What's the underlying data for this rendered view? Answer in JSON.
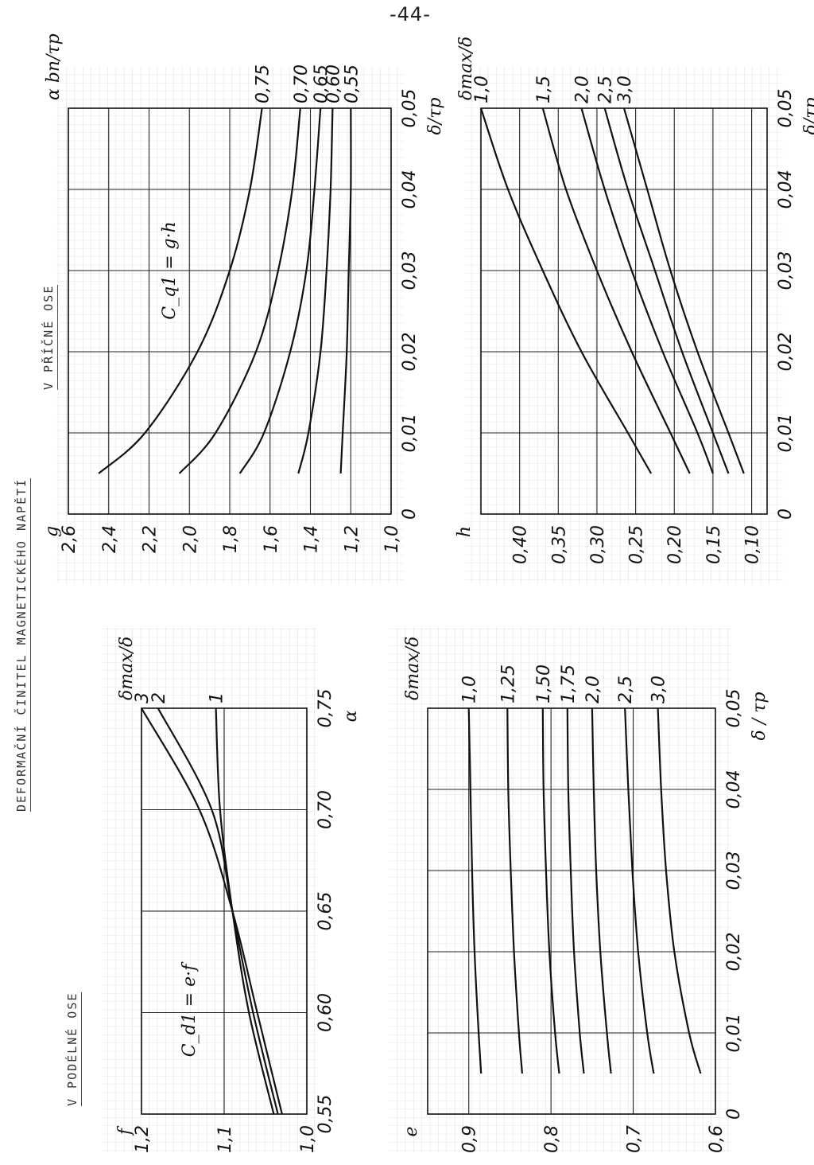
{
  "page_number": "-44-",
  "page_title": "DEFORMAČNÍ ČINITEL MAGNETICKÉHO NAPĚTÍ",
  "section_left": "V PODÉLNÉ OSE",
  "section_right": "V PŘÍČNÉ OSE",
  "chart_data": [
    {
      "id": "f-vs-alpha",
      "type": "line",
      "title": "",
      "annotation": "C_d1 = e·f",
      "xlabel": "α",
      "ylabel": "f",
      "series_label": "δmax/δ",
      "xlim": [
        0.55,
        0.75
      ],
      "ylim": [
        1.0,
        1.2
      ],
      "x_ticks": [
        "0,55",
        "0,60",
        "0,65",
        "0,70",
        "0,75"
      ],
      "y_ticks": [
        "1,0",
        "1,1",
        "1,2"
      ],
      "series": [
        {
          "name": "1",
          "x": [
            0.55,
            0.6,
            0.65,
            0.7,
            0.75
          ],
          "y": [
            1.04,
            1.07,
            1.09,
            1.105,
            1.11
          ]
        },
        {
          "name": "2",
          "x": [
            0.55,
            0.6,
            0.65,
            0.7,
            0.75
          ],
          "y": [
            1.035,
            1.065,
            1.09,
            1.115,
            1.18
          ]
        },
        {
          "name": "3",
          "x": [
            0.55,
            0.6,
            0.65,
            0.7,
            0.75
          ],
          "y": [
            1.03,
            1.06,
            1.09,
            1.13,
            1.2
          ]
        }
      ]
    },
    {
      "id": "e-vs-delta",
      "type": "line",
      "title": "",
      "xlabel": "δ / τp",
      "ylabel": "e",
      "series_label": "δmax/δ",
      "xlim": [
        0,
        0.05
      ],
      "ylim": [
        0.6,
        0.95
      ],
      "x_ticks": [
        "0",
        "0,01",
        "0,02",
        "0,03",
        "0,04",
        "0,05"
      ],
      "y_ticks": [
        "0,6",
        "0,7",
        "0,8",
        "0,9"
      ],
      "series": [
        {
          "name": "1,0",
          "x": [
            0.005,
            0.01,
            0.02,
            0.03,
            0.04,
            0.05
          ],
          "y": [
            0.885,
            0.888,
            0.893,
            0.896,
            0.898,
            0.9
          ]
        },
        {
          "name": "1,25",
          "x": [
            0.005,
            0.01,
            0.02,
            0.03,
            0.04,
            0.05
          ],
          "y": [
            0.835,
            0.839,
            0.845,
            0.849,
            0.852,
            0.853
          ]
        },
        {
          "name": "1,50",
          "x": [
            0.005,
            0.01,
            0.02,
            0.03,
            0.04,
            0.05
          ],
          "y": [
            0.79,
            0.795,
            0.802,
            0.806,
            0.809,
            0.81
          ]
        },
        {
          "name": "1,75",
          "x": [
            0.005,
            0.01,
            0.02,
            0.03,
            0.04,
            0.05
          ],
          "y": [
            0.76,
            0.765,
            0.772,
            0.776,
            0.779,
            0.78
          ]
        },
        {
          "name": "2,0",
          "x": [
            0.005,
            0.01,
            0.02,
            0.03,
            0.04,
            0.05
          ],
          "y": [
            0.727,
            0.732,
            0.74,
            0.745,
            0.748,
            0.75
          ]
        },
        {
          "name": "2,5",
          "x": [
            0.005,
            0.01,
            0.02,
            0.03,
            0.04,
            0.05
          ],
          "y": [
            0.675,
            0.683,
            0.694,
            0.701,
            0.706,
            0.71
          ]
        },
        {
          "name": "3,0",
          "x": [
            0.005,
            0.01,
            0.02,
            0.03,
            0.04,
            0.05
          ],
          "y": [
            0.618,
            0.632,
            0.65,
            0.66,
            0.666,
            0.67
          ]
        }
      ]
    },
    {
      "id": "g-vs-delta",
      "type": "line",
      "title": "",
      "annotation": "C_q1 = g·h",
      "xlabel": "δ/τp",
      "ylabel": "g",
      "series_label": "α   bn/τp",
      "xlim": [
        0,
        0.05
      ],
      "ylim": [
        1.0,
        2.6
      ],
      "x_ticks": [
        "0",
        "0,01",
        "0,02",
        "0,03",
        "0,04",
        "0,05"
      ],
      "y_ticks": [
        "1,0",
        "1,2",
        "1,4",
        "1,6",
        "1,8",
        "2,0",
        "2,2",
        "2,4",
        "2,6"
      ],
      "series": [
        {
          "name": "0,75",
          "x": [
            0.005,
            0.01,
            0.02,
            0.03,
            0.04,
            0.05
          ],
          "y": [
            2.45,
            2.22,
            1.96,
            1.8,
            1.7,
            1.64
          ]
        },
        {
          "name": "0,70",
          "x": [
            0.005,
            0.01,
            0.02,
            0.03,
            0.04,
            0.05
          ],
          "y": [
            2.05,
            1.87,
            1.67,
            1.56,
            1.49,
            1.45
          ]
        },
        {
          "name": "0,65",
          "x": [
            0.005,
            0.01,
            0.02,
            0.03,
            0.04,
            0.05
          ],
          "y": [
            1.75,
            1.63,
            1.5,
            1.42,
            1.38,
            1.35
          ]
        },
        {
          "name": "0,60",
          "x": [
            0.005,
            0.01,
            0.02,
            0.03,
            0.04,
            0.05
          ],
          "y": [
            1.46,
            1.41,
            1.35,
            1.32,
            1.3,
            1.29
          ]
        },
        {
          "name": "0,55",
          "x": [
            0.005,
            0.01,
            0.02,
            0.03,
            0.04,
            0.05
          ],
          "y": [
            1.25,
            1.24,
            1.22,
            1.21,
            1.2,
            1.2
          ]
        }
      ]
    },
    {
      "id": "h-vs-delta",
      "type": "line",
      "title": "",
      "xlabel": "δ/τp",
      "ylabel": "h",
      "series_label": "δmax/δ",
      "xlim": [
        0,
        0.05
      ],
      "ylim": [
        0.08,
        0.45
      ],
      "x_ticks": [
        "0",
        "0,01",
        "0,02",
        "0,03",
        "0,04",
        "0,05"
      ],
      "y_ticks": [
        "0,10",
        "0,15",
        "0,20",
        "0,25",
        "0,30",
        "0,35",
        "0,40"
      ],
      "series": [
        {
          "name": "1,0",
          "x": [
            0.005,
            0.01,
            0.02,
            0.03,
            0.04,
            0.05
          ],
          "y": [
            0.23,
            0.26,
            0.32,
            0.37,
            0.415,
            0.45
          ]
        },
        {
          "name": "1,5",
          "x": [
            0.005,
            0.01,
            0.02,
            0.03,
            0.04,
            0.05
          ],
          "y": [
            0.18,
            0.205,
            0.255,
            0.3,
            0.34,
            0.37
          ]
        },
        {
          "name": "2,0",
          "x": [
            0.005,
            0.01,
            0.02,
            0.03,
            0.04,
            0.05
          ],
          "y": [
            0.15,
            0.17,
            0.215,
            0.255,
            0.29,
            0.32
          ]
        },
        {
          "name": "2,5",
          "x": [
            0.005,
            0.01,
            0.02,
            0.03,
            0.04,
            0.05
          ],
          "y": [
            0.13,
            0.15,
            0.19,
            0.225,
            0.26,
            0.29
          ]
        },
        {
          "name": "3,0",
          "x": [
            0.005,
            0.01,
            0.02,
            0.03,
            0.04,
            0.05
          ],
          "y": [
            0.11,
            0.13,
            0.17,
            0.205,
            0.235,
            0.265
          ]
        }
      ]
    }
  ]
}
